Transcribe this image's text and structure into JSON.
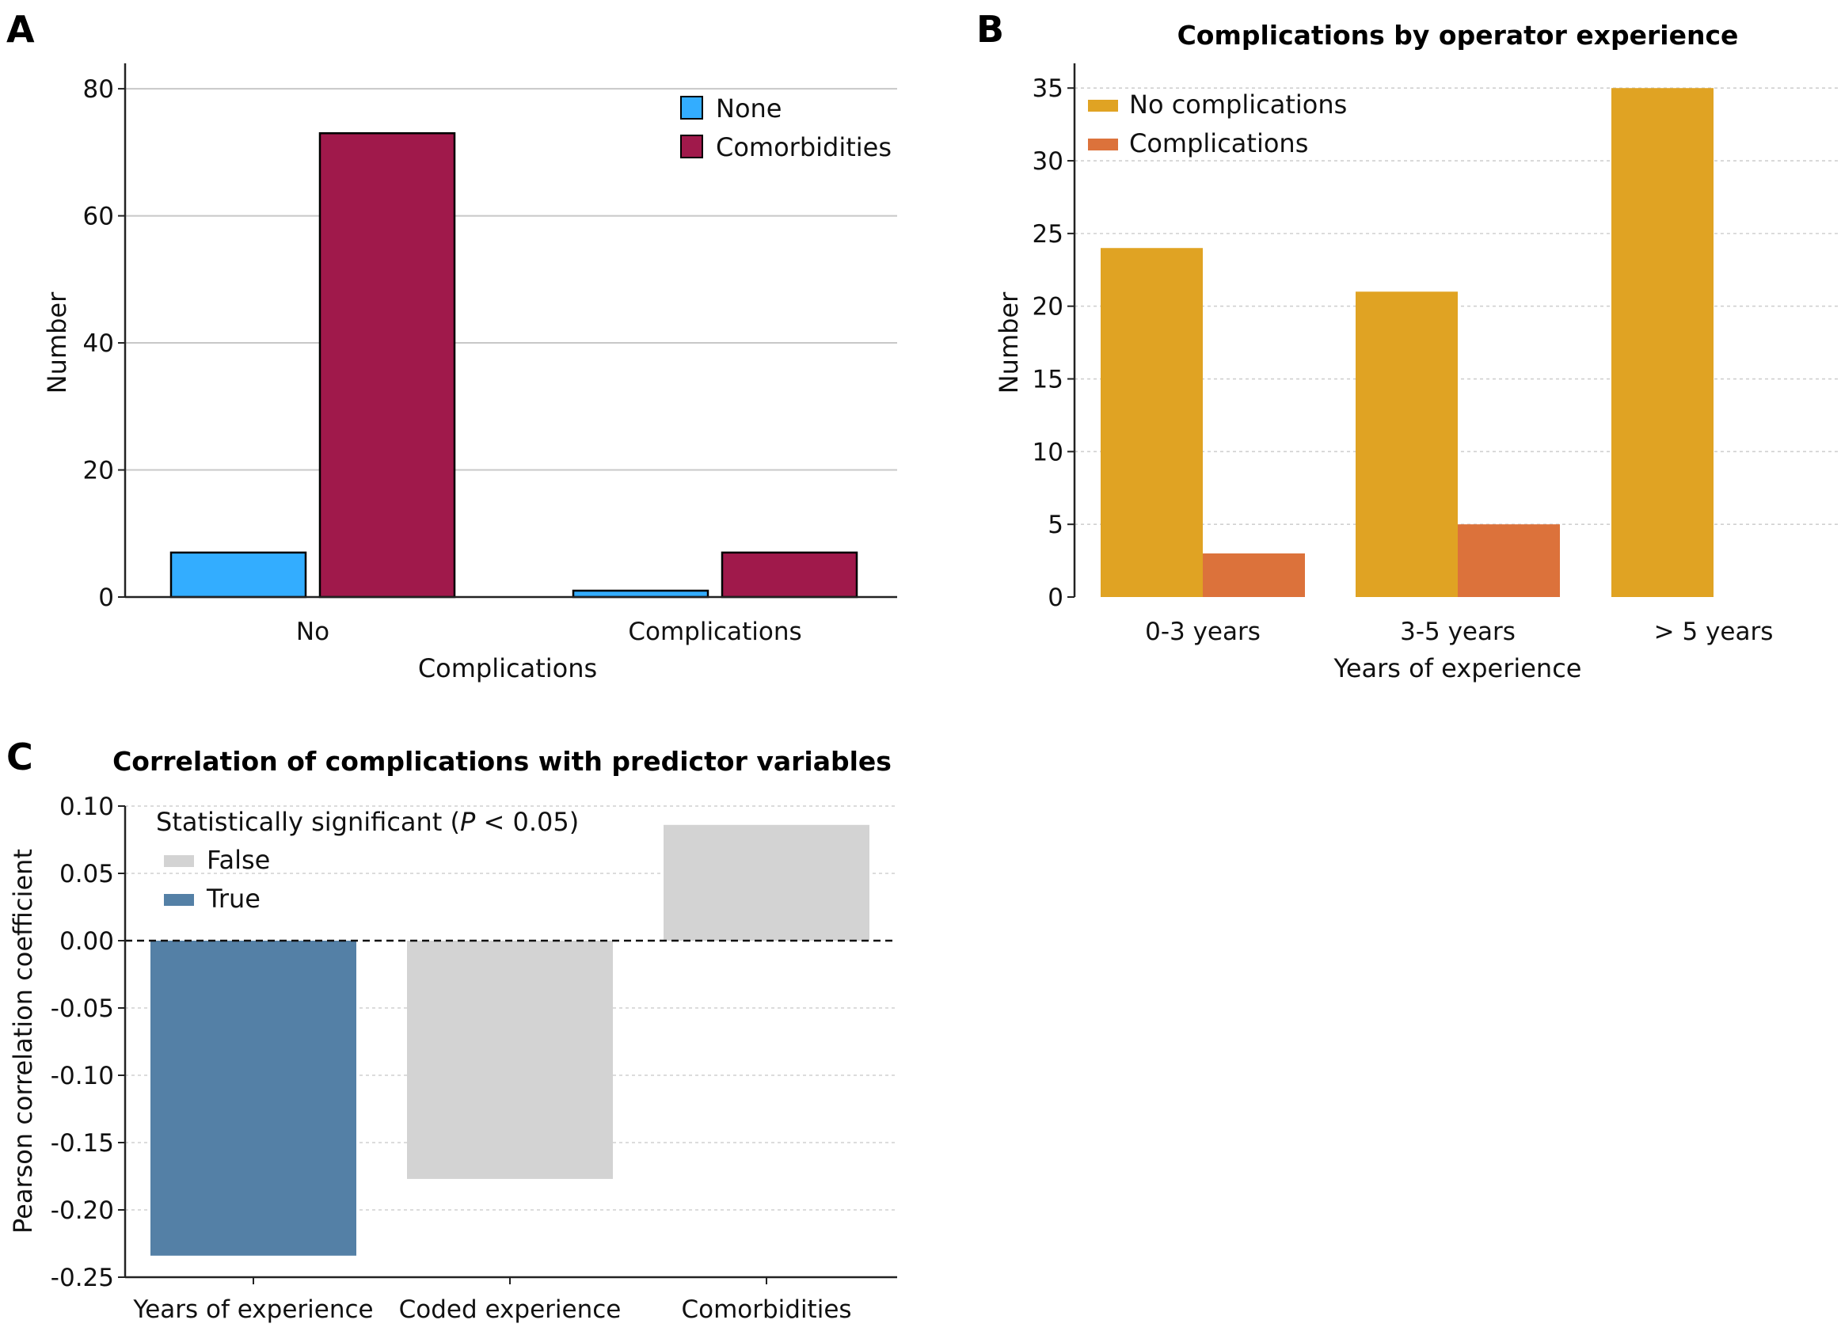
{
  "panels": {
    "a": {
      "label": "A"
    },
    "b": {
      "label": "B"
    },
    "c": {
      "label": "C"
    }
  },
  "colors": {
    "none": "#33adff",
    "comorbidities": "#a0194b",
    "no_complications": "#e0a323",
    "complications": "#dc723b",
    "sig_false": "#d3d3d3",
    "sig_true": "#5480a6"
  },
  "chart_data": [
    {
      "type": "bar",
      "title": "",
      "xlabel": "Complications",
      "ylabel": "Number",
      "categories": [
        "No",
        "Complications"
      ],
      "series": [
        {
          "name": "None",
          "values": [
            7,
            1
          ]
        },
        {
          "name": "Comorbidities",
          "values": [
            73,
            7
          ]
        }
      ],
      "ylim": [
        0,
        84
      ],
      "yticks": [
        0,
        20,
        40,
        60,
        80
      ],
      "grid": true,
      "legend": "top-right"
    },
    {
      "type": "bar",
      "title": "Complications by operator experience",
      "xlabel": "Years of experience",
      "ylabel": "Number",
      "categories": [
        "0-3 years",
        "3-5 years",
        "> 5 years"
      ],
      "series": [
        {
          "name": "No complications",
          "values": [
            24,
            21,
            35
          ]
        },
        {
          "name": "Complications",
          "values": [
            3,
            5,
            0
          ]
        }
      ],
      "ylim": [
        0,
        36.7
      ],
      "yticks": [
        0,
        5,
        10,
        15,
        20,
        25,
        30,
        35
      ],
      "grid": true,
      "legend": "top-left"
    },
    {
      "type": "bar",
      "title": "Correlation of complications with predictor variables",
      "xlabel": "",
      "ylabel": "Pearson correlation coefficient",
      "categories": [
        "Years of experience",
        "Coded experience",
        "Comorbidities"
      ],
      "values": [
        -0.234,
        -0.177,
        0.086
      ],
      "significant": [
        true,
        false,
        false
      ],
      "ylim": [
        -0.25,
        0.1
      ],
      "yticks": [
        "0.10",
        "0.05",
        "0.00",
        "-0.05",
        "-0.10",
        "-0.15",
        "-0.20",
        "-0.25"
      ],
      "grid": true,
      "legend": "top-left",
      "legend_title_prefix": "Statistically significant (",
      "legend_title_italic": "P",
      "legend_title_suffix": " < 0.05)",
      "legend_entries": [
        "False",
        "True"
      ]
    }
  ]
}
